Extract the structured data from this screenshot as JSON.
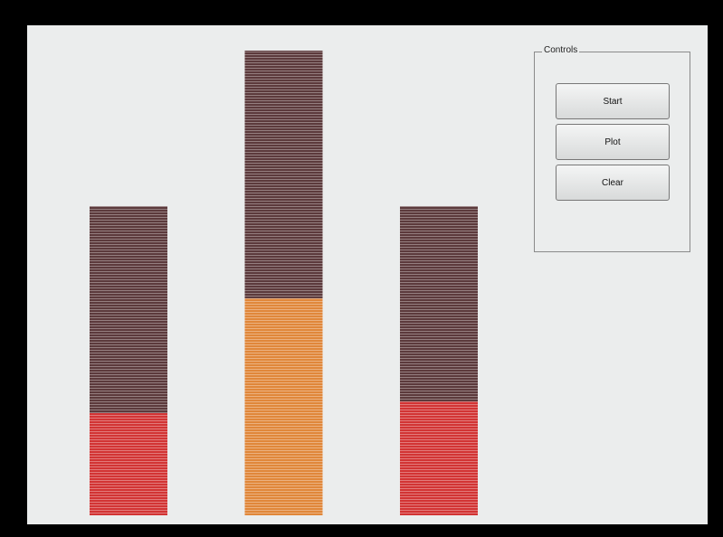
{
  "controls": {
    "title": "Controls",
    "buttons": [
      "Start",
      "Plot",
      "Clear"
    ]
  },
  "chart_data": {
    "type": "stacked_bar",
    "ylim": [
      0,
      100
    ],
    "series": [
      {
        "colors": [
          "#d23434",
          "#e0873a",
          "#d23434"
        ],
        "values": [
          22,
          46.7,
          24.5
        ]
      },
      {
        "color": "#5c3a3c",
        "values": [
          44.5,
          53.3,
          42
        ]
      }
    ]
  }
}
